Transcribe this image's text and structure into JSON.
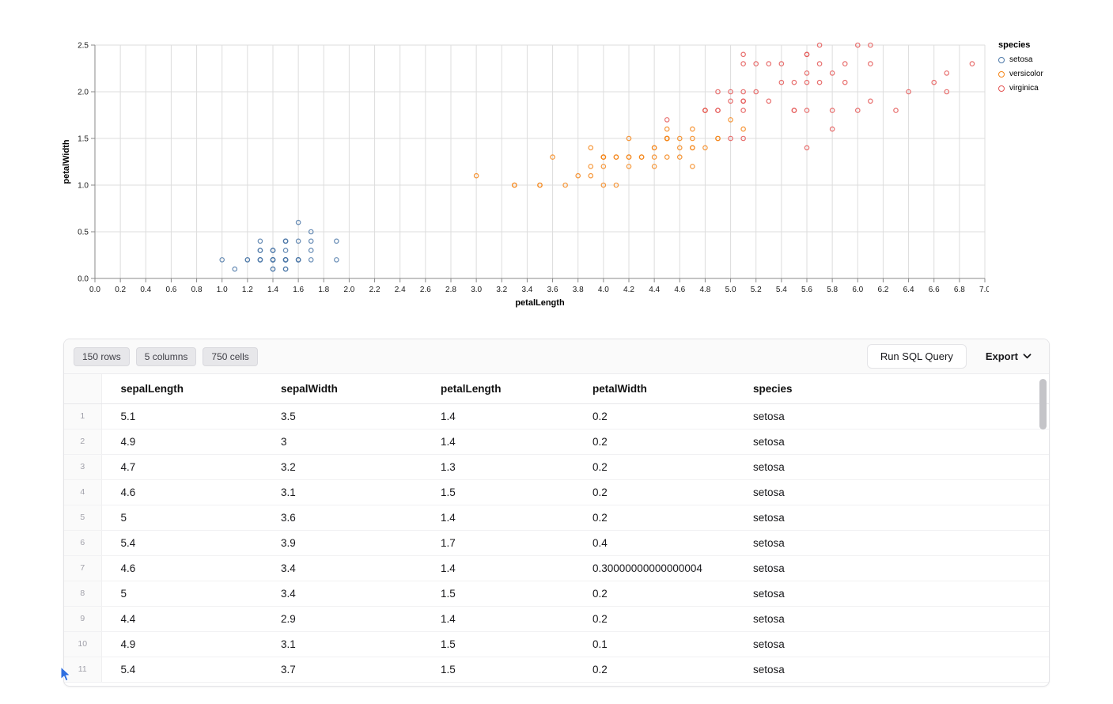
{
  "chart_data": {
    "type": "scatter",
    "title": "",
    "xlabel": "petalLength",
    "ylabel": "petalWidth",
    "legend_title": "species",
    "legend_position": "right",
    "grid": true,
    "xlim": [
      0,
      7
    ],
    "ylim": [
      0,
      2.5
    ],
    "x_ticks": [
      0,
      0.2,
      0.4,
      0.6,
      0.8,
      1,
      1.2,
      1.4,
      1.6,
      1.8,
      2,
      2.2,
      2.4,
      2.6,
      2.8,
      3,
      3.2,
      3.4,
      3.6,
      3.8,
      4,
      4.2,
      4.4,
      4.6,
      4.8,
      5,
      5.2,
      5.4,
      5.6,
      5.8,
      6,
      6.2,
      6.4,
      6.6,
      6.8,
      7
    ],
    "y_ticks": [
      0,
      0.5,
      1,
      1.5,
      2,
      2.5
    ],
    "series": [
      {
        "name": "setosa",
        "color": "#4c78a8",
        "points": [
          [
            1.4,
            0.2
          ],
          [
            1.4,
            0.2
          ],
          [
            1.3,
            0.2
          ],
          [
            1.5,
            0.2
          ],
          [
            1.4,
            0.2
          ],
          [
            1.7,
            0.4
          ],
          [
            1.4,
            0.3
          ],
          [
            1.5,
            0.2
          ],
          [
            1.4,
            0.2
          ],
          [
            1.5,
            0.1
          ],
          [
            1.5,
            0.2
          ],
          [
            1.6,
            0.2
          ],
          [
            1.4,
            0.1
          ],
          [
            1.1,
            0.1
          ],
          [
            1.2,
            0.2
          ],
          [
            1.5,
            0.4
          ],
          [
            1.3,
            0.4
          ],
          [
            1.4,
            0.3
          ],
          [
            1.7,
            0.3
          ],
          [
            1.5,
            0.3
          ],
          [
            1.7,
            0.2
          ],
          [
            1.5,
            0.4
          ],
          [
            1.0,
            0.2
          ],
          [
            1.7,
            0.5
          ],
          [
            1.9,
            0.2
          ],
          [
            1.6,
            0.2
          ],
          [
            1.6,
            0.4
          ],
          [
            1.5,
            0.2
          ],
          [
            1.4,
            0.2
          ],
          [
            1.6,
            0.2
          ],
          [
            1.6,
            0.2
          ],
          [
            1.5,
            0.4
          ],
          [
            1.5,
            0.1
          ],
          [
            1.4,
            0.2
          ],
          [
            1.5,
            0.2
          ],
          [
            1.2,
            0.2
          ],
          [
            1.3,
            0.2
          ],
          [
            1.4,
            0.1
          ],
          [
            1.3,
            0.2
          ],
          [
            1.5,
            0.2
          ],
          [
            1.3,
            0.3
          ],
          [
            1.3,
            0.3
          ],
          [
            1.3,
            0.2
          ],
          [
            1.6,
            0.6
          ],
          [
            1.9,
            0.4
          ],
          [
            1.4,
            0.3
          ],
          [
            1.6,
            0.2
          ],
          [
            1.4,
            0.2
          ],
          [
            1.5,
            0.2
          ],
          [
            1.4,
            0.2
          ]
        ]
      },
      {
        "name": "versicolor",
        "color": "#f58518",
        "points": [
          [
            4.7,
            1.4
          ],
          [
            4.5,
            1.5
          ],
          [
            4.9,
            1.5
          ],
          [
            4.0,
            1.3
          ],
          [
            4.6,
            1.5
          ],
          [
            4.5,
            1.3
          ],
          [
            4.7,
            1.6
          ],
          [
            3.3,
            1.0
          ],
          [
            4.6,
            1.3
          ],
          [
            3.9,
            1.4
          ],
          [
            3.5,
            1.0
          ],
          [
            4.2,
            1.5
          ],
          [
            4.0,
            1.0
          ],
          [
            4.7,
            1.4
          ],
          [
            3.6,
            1.3
          ],
          [
            4.4,
            1.4
          ],
          [
            4.5,
            1.5
          ],
          [
            4.1,
            1.0
          ],
          [
            4.5,
            1.5
          ],
          [
            3.9,
            1.1
          ],
          [
            4.8,
            1.8
          ],
          [
            4.0,
            1.3
          ],
          [
            4.9,
            1.5
          ],
          [
            4.7,
            1.2
          ],
          [
            4.3,
            1.3
          ],
          [
            4.4,
            1.4
          ],
          [
            4.8,
            1.4
          ],
          [
            5.0,
            1.7
          ],
          [
            4.5,
            1.5
          ],
          [
            3.5,
            1.0
          ],
          [
            3.8,
            1.1
          ],
          [
            3.7,
            1.0
          ],
          [
            3.9,
            1.2
          ],
          [
            5.1,
            1.6
          ],
          [
            4.5,
            1.5
          ],
          [
            4.5,
            1.6
          ],
          [
            4.7,
            1.5
          ],
          [
            4.4,
            1.3
          ],
          [
            4.1,
            1.3
          ],
          [
            4.0,
            1.3
          ],
          [
            4.4,
            1.2
          ],
          [
            4.6,
            1.4
          ],
          [
            4.0,
            1.2
          ],
          [
            3.3,
            1.0
          ],
          [
            4.2,
            1.3
          ],
          [
            4.2,
            1.2
          ],
          [
            4.2,
            1.3
          ],
          [
            4.3,
            1.3
          ],
          [
            3.0,
            1.1
          ],
          [
            4.1,
            1.3
          ]
        ]
      },
      {
        "name": "virginica",
        "color": "#e45756",
        "points": [
          [
            6.0,
            2.5
          ],
          [
            5.1,
            1.9
          ],
          [
            5.9,
            2.1
          ],
          [
            5.6,
            1.8
          ],
          [
            5.8,
            2.2
          ],
          [
            6.6,
            2.1
          ],
          [
            4.5,
            1.7
          ],
          [
            6.3,
            1.8
          ],
          [
            5.8,
            1.8
          ],
          [
            6.1,
            2.5
          ],
          [
            5.1,
            2.0
          ],
          [
            5.3,
            1.9
          ],
          [
            5.5,
            2.1
          ],
          [
            5.0,
            2.0
          ],
          [
            5.1,
            2.4
          ],
          [
            5.3,
            2.3
          ],
          [
            5.5,
            1.8
          ],
          [
            6.7,
            2.2
          ],
          [
            6.9,
            2.3
          ],
          [
            5.0,
            1.5
          ],
          [
            5.7,
            2.3
          ],
          [
            4.9,
            2.0
          ],
          [
            6.7,
            2.0
          ],
          [
            4.9,
            1.8
          ],
          [
            5.7,
            2.1
          ],
          [
            6.0,
            1.8
          ],
          [
            4.8,
            1.8
          ],
          [
            4.9,
            1.8
          ],
          [
            5.6,
            2.1
          ],
          [
            5.8,
            1.6
          ],
          [
            6.1,
            1.9
          ],
          [
            6.4,
            2.0
          ],
          [
            5.6,
            2.2
          ],
          [
            5.1,
            1.5
          ],
          [
            5.6,
            1.4
          ],
          [
            6.1,
            2.3
          ],
          [
            5.6,
            2.4
          ],
          [
            5.5,
            1.8
          ],
          [
            4.8,
            1.8
          ],
          [
            5.4,
            2.1
          ],
          [
            5.6,
            2.4
          ],
          [
            5.1,
            2.3
          ],
          [
            5.1,
            1.9
          ],
          [
            5.9,
            2.3
          ],
          [
            5.7,
            2.5
          ],
          [
            5.2,
            2.3
          ],
          [
            5.0,
            1.9
          ],
          [
            5.2,
            2.0
          ],
          [
            5.4,
            2.3
          ],
          [
            5.1,
            1.8
          ]
        ]
      }
    ]
  },
  "toolbar": {
    "badges": [
      "150 rows",
      "5 columns",
      "750 cells"
    ],
    "run_sql_label": "Run SQL Query",
    "export_label": "Export"
  },
  "icons": {
    "export_chevron": "chevron-down",
    "cursor": "pointer-arrow"
  },
  "table": {
    "columns": [
      "sepalLength",
      "sepalWidth",
      "petalLength",
      "petalWidth",
      "species"
    ],
    "rows": [
      {
        "n": "1",
        "cells": [
          "5.1",
          "3.5",
          "1.4",
          "0.2",
          "setosa"
        ]
      },
      {
        "n": "2",
        "cells": [
          "4.9",
          "3",
          "1.4",
          "0.2",
          "setosa"
        ]
      },
      {
        "n": "3",
        "cells": [
          "4.7",
          "3.2",
          "1.3",
          "0.2",
          "setosa"
        ]
      },
      {
        "n": "4",
        "cells": [
          "4.6",
          "3.1",
          "1.5",
          "0.2",
          "setosa"
        ]
      },
      {
        "n": "5",
        "cells": [
          "5",
          "3.6",
          "1.4",
          "0.2",
          "setosa"
        ]
      },
      {
        "n": "6",
        "cells": [
          "5.4",
          "3.9",
          "1.7",
          "0.4",
          "setosa"
        ]
      },
      {
        "n": "7",
        "cells": [
          "4.6",
          "3.4",
          "1.4",
          "0.30000000000000004",
          "setosa"
        ]
      },
      {
        "n": "8",
        "cells": [
          "5",
          "3.4",
          "1.5",
          "0.2",
          "setosa"
        ]
      },
      {
        "n": "9",
        "cells": [
          "4.4",
          "2.9",
          "1.4",
          "0.2",
          "setosa"
        ]
      },
      {
        "n": "10",
        "cells": [
          "4.9",
          "3.1",
          "1.5",
          "0.1",
          "setosa"
        ]
      },
      {
        "n": "11",
        "cells": [
          "5.4",
          "3.7",
          "1.5",
          "0.2",
          "setosa"
        ]
      }
    ]
  }
}
